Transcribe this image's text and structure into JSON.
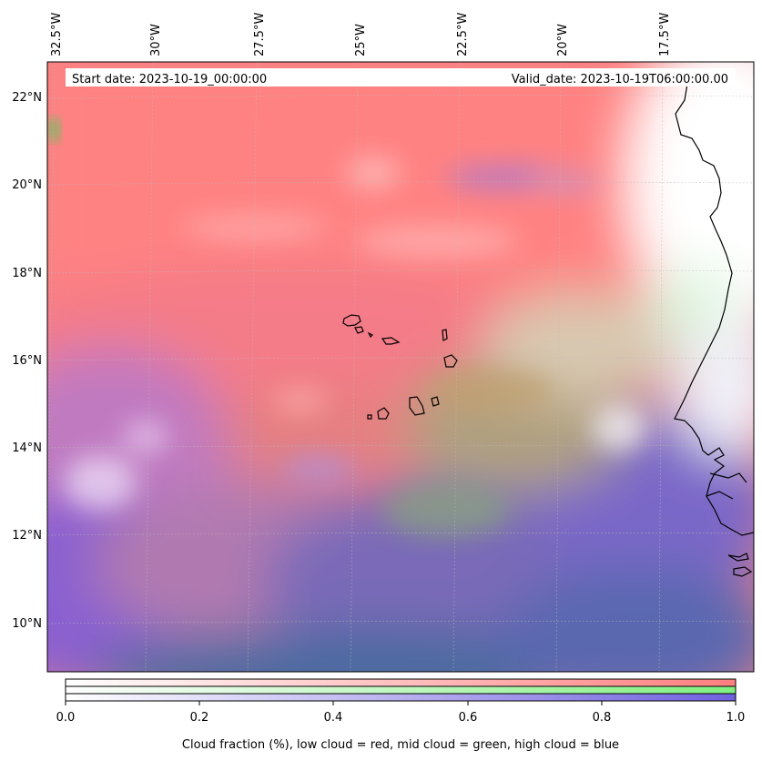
{
  "map": {
    "start_date": "Start date: 2023-10-19_00:00:00",
    "valid_date": "Valid_date: 2023-10-19T06:00:00.00",
    "lon_labels": [
      "32.5°W",
      "30°W",
      "27.5°W",
      "25°W",
      "22.5°W",
      "20°W",
      "17.5°W"
    ],
    "lat_labels": [
      "22°N",
      "20°N",
      "18°N",
      "16°N",
      "14°N",
      "12°N",
      "10°N"
    ],
    "colors": {
      "low_cloud": "#ff7f7f",
      "mid_cloud": "#80f080",
      "high_cloud": "#7060e0",
      "coastline": "#000000"
    }
  },
  "colorbar": {
    "ticks": [
      "0.0",
      "0.2",
      "0.4",
      "0.6",
      "0.8",
      "1.0"
    ],
    "label": "Cloud fraction (%), low cloud = red, mid cloud = green, high cloud = blue"
  }
}
